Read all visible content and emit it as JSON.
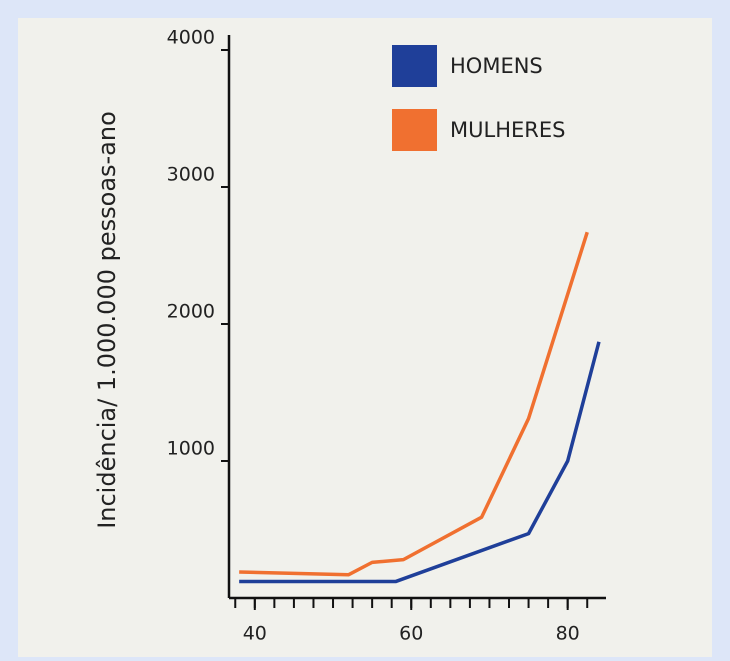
{
  "chart_data": {
    "type": "line",
    "y_axis_label": "Incidência/ 1.000.000 pessoas-ano",
    "xlim": [
      36.7,
      84.9
    ],
    "xticks": [
      40,
      60,
      80
    ],
    "x_minor_ticks": [
      37.5,
      40,
      42.5,
      45,
      47.5,
      50,
      52.5,
      55,
      57.5,
      60,
      62.5,
      65,
      67.5,
      70,
      72.5,
      75,
      77.5,
      80,
      82.5
    ],
    "ylim": [
      0,
      4000
    ],
    "yticks": [
      1000,
      2000,
      3000,
      4000
    ],
    "series": [
      {
        "name": "HOMENS",
        "color": "#1f3f99",
        "x": [
          38,
          58,
          75,
          80,
          84
        ],
        "values": [
          120,
          120,
          470,
          1000,
          1870
        ]
      },
      {
        "name": "MULHERES",
        "color": "#f07030",
        "x": [
          38,
          45,
          52,
          55,
          59,
          69,
          75,
          82.5
        ],
        "values": [
          190,
          180,
          170,
          260,
          280,
          590,
          1310,
          2670
        ]
      }
    ]
  }
}
